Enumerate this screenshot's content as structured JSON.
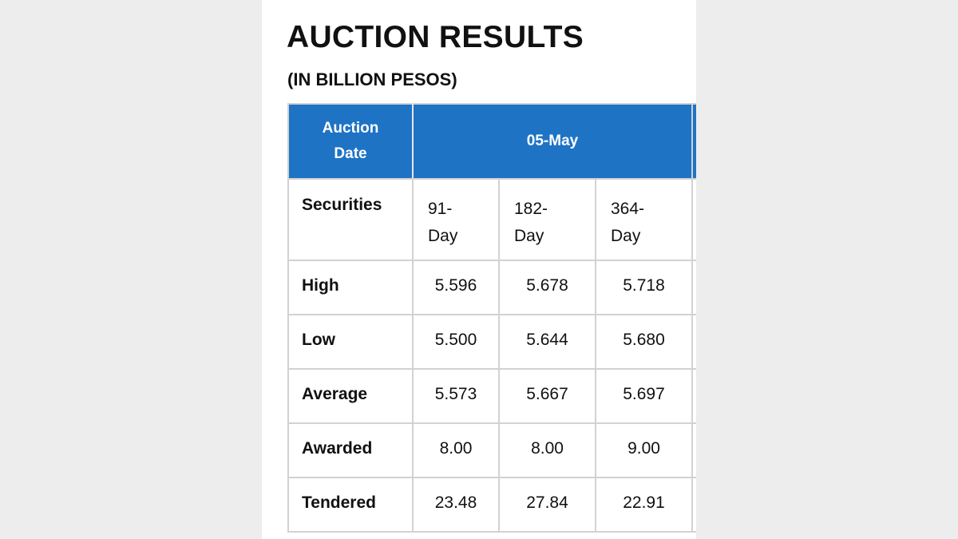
{
  "document": {
    "title": "AUCTION RESULTS",
    "subtitle": "(IN BILLION PESOS)"
  },
  "table": {
    "header_label": "Auction Date",
    "date": "05-May",
    "securities_label": "Securities",
    "securities": [
      "91-Day",
      "182-Day",
      "364-Day"
    ],
    "rows": [
      {
        "label": "High",
        "values": [
          "5.596",
          "5.678",
          "5.718"
        ]
      },
      {
        "label": "Low",
        "values": [
          "5.500",
          "5.644",
          "5.680"
        ]
      },
      {
        "label": "Average",
        "values": [
          "5.573",
          "5.667",
          "5.697"
        ]
      },
      {
        "label": "Awarded",
        "values": [
          "8.00",
          "8.00",
          "9.00"
        ]
      },
      {
        "label": "Tendered",
        "values": [
          "23.48",
          "27.84",
          "22.91"
        ]
      }
    ]
  },
  "colors": {
    "header_bg": "#1e73c5",
    "header_text": "#ffffff",
    "grid": "#d2d2d2"
  }
}
